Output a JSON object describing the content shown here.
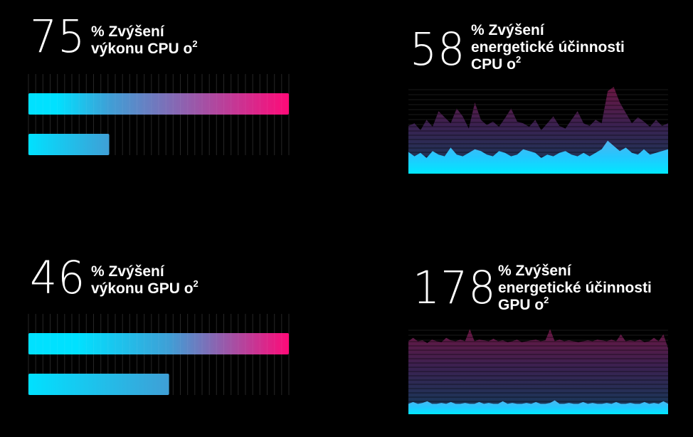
{
  "colors": {
    "cyan": "#00e1ff",
    "blue": "#3f9fd6",
    "magenta": "#ff0a78",
    "bg": "#000000"
  },
  "chart_data": [
    {
      "type": "bar",
      "value_label": "75",
      "caption_lines": [
        "% Zvýšení",
        "výkonu CPU o"
      ],
      "footnote": "2",
      "categories": [
        "",
        ""
      ],
      "values": [
        100,
        31
      ],
      "xlim": [
        0,
        100
      ]
    },
    {
      "type": "area",
      "value_label": "58",
      "caption_lines": [
        "% Zvýšení",
        "energetické účinnosti",
        "CPU o"
      ],
      "footnote": "2",
      "ylim": [
        0,
        100
      ],
      "series": [
        {
          "values": [
            55,
            58,
            50,
            62,
            54,
            72,
            65,
            58,
            75,
            66,
            52,
            82,
            62,
            56,
            60,
            54,
            64,
            75,
            60,
            58,
            54,
            62,
            50,
            58,
            66,
            55,
            52,
            62,
            72,
            58,
            55,
            62,
            58,
            95,
            100,
            82,
            70,
            58,
            65,
            60,
            54,
            62,
            55,
            58
          ]
        },
        {
          "values": [
            25,
            20,
            24,
            18,
            26,
            22,
            20,
            30,
            22,
            20,
            24,
            28,
            26,
            22,
            20,
            26,
            24,
            20,
            22,
            28,
            26,
            24,
            18,
            22,
            20,
            24,
            26,
            22,
            20,
            24,
            20,
            24,
            28,
            38,
            32,
            26,
            30,
            24,
            22,
            28,
            22,
            24,
            26,
            28
          ]
        }
      ]
    },
    {
      "type": "bar",
      "value_label": "46",
      "caption_lines": [
        "% Zvýšení",
        "výkonu GPU o"
      ],
      "footnote": "2",
      "categories": [
        "",
        ""
      ],
      "values": [
        100,
        54
      ],
      "xlim": [
        0,
        100
      ]
    },
    {
      "type": "area",
      "value_label": "178",
      "caption_lines": [
        "% Zvýšení",
        "energetické účinnosti",
        "GPU o"
      ],
      "footnote": "2",
      "ylim": [
        0,
        100
      ],
      "series": [
        {
          "values": [
            84,
            88,
            84,
            85,
            82,
            86,
            84,
            83,
            88,
            85,
            84,
            86,
            84,
            98,
            84,
            86,
            85,
            84,
            87,
            84,
            85,
            83,
            84,
            86,
            83,
            84,
            85,
            86,
            84,
            85,
            98,
            84,
            86,
            84,
            85,
            84,
            83,
            84,
            85,
            84,
            86,
            85,
            84,
            86,
            84,
            92,
            84,
            85,
            84,
            86,
            83,
            84,
            88,
            84,
            92,
            76
          ]
        },
        {
          "values": [
            12,
            14,
            12,
            13,
            15,
            12,
            12,
            13,
            12,
            14,
            12,
            12,
            13,
            12,
            12,
            14,
            12,
            13,
            12,
            12,
            15,
            12,
            13,
            12,
            12,
            13,
            12,
            14,
            12,
            12,
            13,
            16,
            12,
            12,
            13,
            12,
            12,
            14,
            12,
            13,
            12,
            12,
            13,
            12,
            14,
            12,
            12,
            13,
            12,
            12,
            14,
            12,
            13,
            12,
            15,
            12
          ]
        }
      ]
    }
  ]
}
